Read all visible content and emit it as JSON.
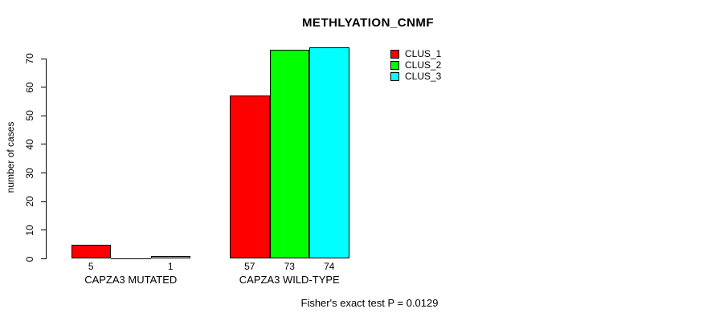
{
  "title": "METHLYATION_CNMF",
  "footer": "Fisher's exact test P = 0.0129",
  "legend": {
    "entries": [
      {
        "label": "CLUS_1",
        "color": "#ff0000"
      },
      {
        "label": "CLUS_2",
        "color": "#00ff00"
      },
      {
        "label": "CLUS_3",
        "color": "#00ffff"
      }
    ]
  },
  "chart_data": {
    "type": "bar",
    "title": "METHLYATION_CNMF",
    "ylabel": "number of cases",
    "xlabel": "",
    "categories": [
      "CAPZA3 MUTATED",
      "CAPZA3 WILD-TYPE"
    ],
    "series": [
      {
        "name": "CLUS_1",
        "color": "#ff0000",
        "values": [
          5,
          57
        ]
      },
      {
        "name": "CLUS_2",
        "color": "#00ff00",
        "values": [
          0,
          73
        ]
      },
      {
        "name": "CLUS_3",
        "color": "#00ffff",
        "values": [
          1,
          74
        ]
      }
    ],
    "bar_labels": [
      [
        "5",
        "",
        "1"
      ],
      [
        "57",
        "73",
        "74"
      ]
    ],
    "yticks": [
      0,
      10,
      20,
      30,
      40,
      50,
      60,
      70
    ],
    "ylim": [
      0,
      70
    ],
    "grid": false,
    "legend_position": "top-right",
    "annotation": "Fisher's exact test P = 0.0129"
  }
}
